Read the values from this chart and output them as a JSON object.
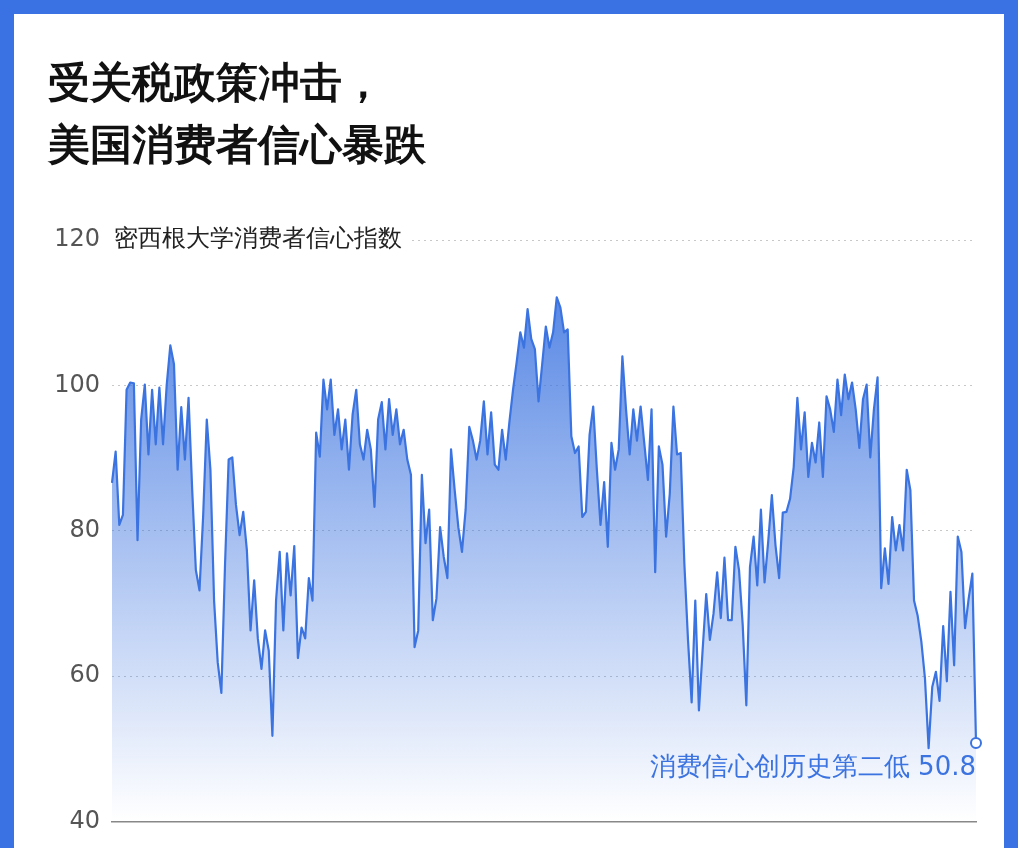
{
  "chart_data": {
    "type": "area",
    "title": "受关税政策冲击，美国消费者信心暴跌",
    "ylabel": "密西根大学消费者信心指数",
    "categories": [
      null,
      null,
      null,
      null,
      null,
      null,
      null,
      null,
      null,
      null,
      null,
      null,
      null,
      null,
      null,
      null,
      null,
      null,
      null,
      null,
      null,
      null,
      null,
      null,
      null,
      null,
      null,
      null,
      null,
      null,
      null,
      null,
      null,
      null,
      null,
      null,
      null,
      null,
      null,
      null,
      null,
      null,
      null,
      null,
      null,
      null,
      null,
      null,
      null,
      null,
      null,
      null,
      null,
      null,
      null,
      null,
      null,
      null,
      null,
      null,
      null,
      null,
      null,
      null,
      null,
      null,
      null,
      null,
      null,
      null,
      null,
      null,
      null,
      null,
      null,
      null,
      null,
      null,
      null,
      null,
      null,
      null,
      null,
      null,
      null,
      null,
      null,
      null,
      null,
      null,
      null,
      null,
      null,
      null,
      null,
      null,
      null,
      null,
      null,
      null,
      null,
      null,
      null,
      null,
      null,
      null,
      null,
      null,
      null,
      null,
      null,
      null,
      null,
      null,
      null,
      null,
      null,
      null,
      null,
      null,
      null,
      null,
      null,
      null,
      null,
      null,
      null,
      null,
      null,
      null,
      null,
      null,
      null,
      null,
      null,
      null,
      null,
      null,
      null,
      null,
      null,
      null,
      null,
      null,
      null,
      null,
      null,
      null,
      null,
      null,
      null,
      null,
      null,
      null,
      null,
      null,
      null,
      null,
      null,
      null,
      null,
      null,
      null,
      null,
      null,
      null,
      null,
      null,
      null,
      null,
      null,
      null,
      null,
      null,
      null,
      null,
      null,
      null,
      null,
      null,
      null,
      null,
      null,
      null,
      null,
      null,
      null,
      null,
      null,
      null,
      null,
      null,
      null,
      null,
      null,
      null,
      null,
      null,
      null,
      null,
      null,
      null,
      null,
      null,
      null,
      null,
      null,
      null,
      null,
      null,
      null,
      null,
      null,
      null,
      null,
      null,
      null,
      null,
      null,
      null,
      null,
      null,
      null,
      null,
      null,
      null,
      null,
      null,
      null,
      null,
      null,
      null,
      null,
      null,
      null,
      null,
      null,
      null
    ],
    "series": [
      {
        "color": "#3b73e0",
        "values": [
          86.6,
          90.9,
          80.8,
          82.2,
          99.4,
          100.4,
          100.3,
          78.7,
          95.3,
          100.1,
          90.5,
          99.4,
          91.9,
          99.7,
          91.9,
          100,
          105.5,
          102.9,
          88.4,
          97.0,
          89.8,
          98.3,
          85.6,
          74.6,
          71.8,
          82,
          95.3,
          88.4,
          70.4,
          61.9,
          57.7,
          75.3,
          89.8,
          90.1,
          83.6,
          79.4,
          82.6,
          77.3,
          66.3,
          73.2,
          65.2,
          61.0,
          66.3,
          63.5,
          51.8,
          70.4,
          77.1,
          66.3,
          76.9,
          71.1,
          77.9,
          62.5,
          66.7,
          65.2,
          73.5,
          70.4,
          93.5,
          90.2,
          100.8,
          96.7,
          100.8,
          93.2,
          96.7,
          91.2,
          95.3,
          88.4,
          96,
          99.4,
          91.9,
          89.8,
          93.9,
          91.2,
          83.3,
          95.3,
          97.7,
          91.2,
          98.1,
          93.2,
          96.7,
          91.9,
          93.9,
          89.8,
          87.7,
          64.0,
          66.3,
          87.7,
          78.3,
          82.9,
          67.7,
          70.7,
          80.5,
          76.4,
          73.5,
          91.2,
          85.6,
          80.5,
          77.1,
          82.9,
          94.3,
          92.4,
          89.8,
          92.4,
          97.8,
          90.5,
          96.3,
          89.1,
          88.4,
          93.9,
          89.8,
          94.9,
          99.4,
          103.2,
          107.3,
          105.2,
          110.5,
          106.4,
          105,
          97.8,
          102.9,
          108.1,
          105.2,
          107.3,
          112.1,
          110.7,
          107.3,
          107.7,
          93,
          90.7,
          91.6,
          81.9,
          82.6,
          93.2,
          97.1,
          88.4,
          80.8,
          86.7,
          77.8,
          92.1,
          88.4,
          91.2,
          104,
          96.7,
          90.5,
          96.7,
          92.4,
          97.1,
          92.1,
          87,
          96.7,
          74.3,
          91.6,
          89.1,
          79.2,
          85.1,
          97.1,
          90.5,
          90.7,
          75.5,
          65,
          56.4,
          70.4,
          55.3,
          63.5,
          71.3,
          65,
          68.6,
          74.3,
          68,
          76.3,
          67.7,
          67.7,
          77.8,
          74.6,
          67.1,
          56,
          75,
          79.2,
          72.5,
          82.9,
          72.9,
          78.5,
          84.9,
          78,
          73.5,
          82.5,
          82.6,
          84.4,
          88.8,
          98.3,
          91.2,
          96.3,
          87.4,
          92.1,
          89.4,
          94.9,
          87.4,
          98.5,
          96.7,
          93.6,
          100.8,
          95.9,
          101.5,
          98.1,
          100.4,
          96.7,
          91.4,
          98.1,
          100.1,
          90.1,
          96.7,
          101.1,
          72.1,
          77.6,
          72.7,
          81.9,
          77.3,
          80.8,
          77.3,
          88.4,
          85.6,
          70.4,
          68.3,
          64.8,
          59.7,
          50.1,
          58.5,
          60.6,
          56.6,
          66.9,
          59.3,
          71.6,
          61.5,
          79.2,
          77.1,
          66.6,
          70.7,
          74.1,
          50.8
        ]
      }
    ],
    "annotations": [
      "消费信心创历史第二低 50.8"
    ],
    "ylim": [
      40,
      120
    ],
    "yticks": [
      40,
      60,
      80,
      100,
      120
    ],
    "grid": "y",
    "marker": "none",
    "tick_labels": "y"
  }
}
